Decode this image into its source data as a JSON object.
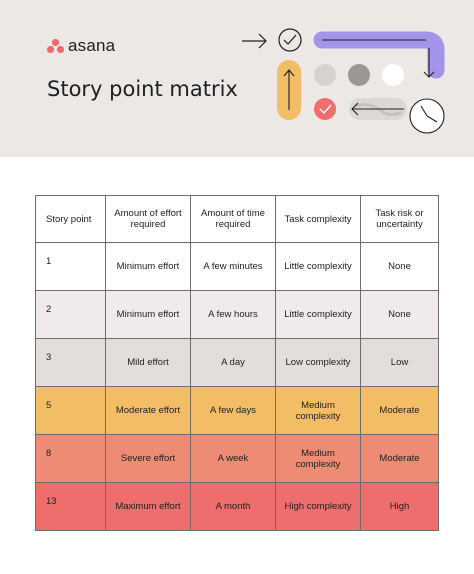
{
  "brand": {
    "name": "asana",
    "dot_color": "#f06a6a"
  },
  "title": "Story point matrix",
  "table": {
    "headers": [
      "Story point",
      "Amount of effort required",
      "Amount of time required",
      "Task complexity",
      "Task risk or uncertainty"
    ],
    "rows": [
      {
        "points": "1",
        "effort": "Minimum effort",
        "time": "A few minutes",
        "complexity": "Little complexity",
        "risk": "None",
        "color": "#ffffff"
      },
      {
        "points": "2",
        "effort": "Minimum effort",
        "time": "A few hours",
        "complexity": "Little complexity",
        "risk": "None",
        "color": "#efebea"
      },
      {
        "points": "3",
        "effort": "Mild effort",
        "time": "A day",
        "complexity": "Low complexity",
        "risk": "Low",
        "color": "#e2dedc"
      },
      {
        "points": "5",
        "effort": "Moderate effort",
        "time": "A few days",
        "complexity": "Medium complexity",
        "risk": "Moderate",
        "color": "#f2bd65"
      },
      {
        "points": "8",
        "effort": "Severe effort",
        "time": "A week",
        "complexity": "Medium complexity",
        "risk": "Moderate",
        "color": "#ee8b74"
      },
      {
        "points": "13",
        "effort": "Maximum effort",
        "time": "A month",
        "complexity": "High complexity",
        "risk": "High",
        "color": "#ee6e6e"
      }
    ]
  },
  "decoration": {
    "icons": [
      "arrow-right-icon",
      "check-circle-icon",
      "purple-arrow-path-icon",
      "arrow-up-icon",
      "gray-circle-icon",
      "white-circle-icon",
      "red-check-icon",
      "marble-arrow-left-icon",
      "clock-icon"
    ],
    "colors": {
      "purple": "#a394ea",
      "yellow": "#f2bd65",
      "red": "#ee6e6e",
      "gray_light": "#d6d2d0",
      "gray_dark": "#9b9795"
    }
  }
}
